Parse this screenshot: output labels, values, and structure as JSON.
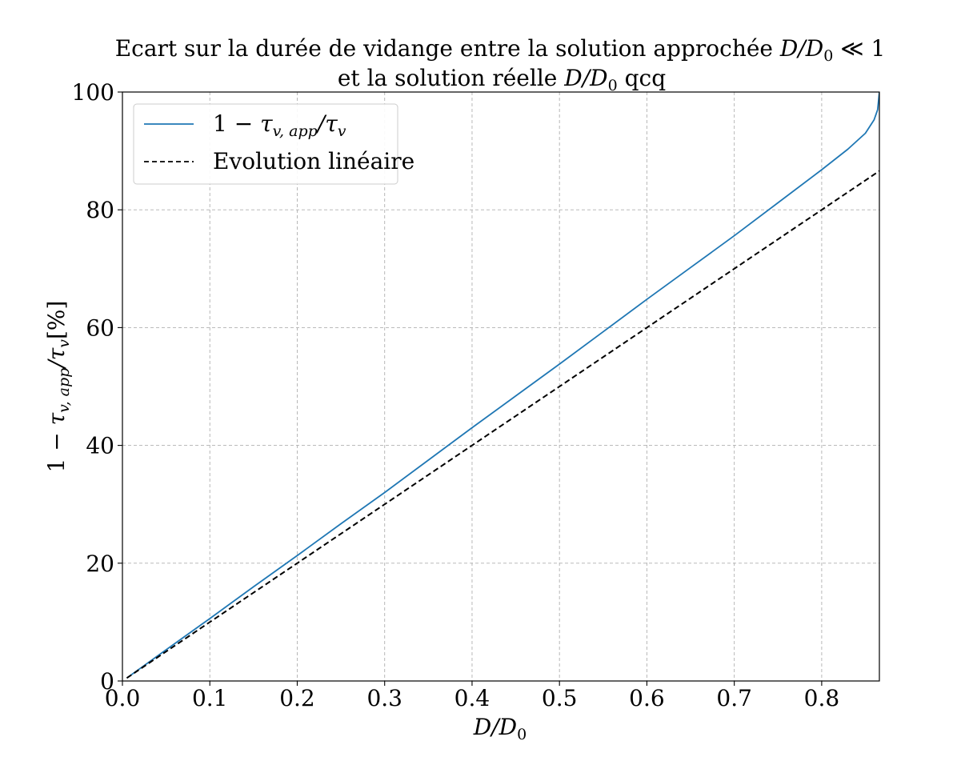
{
  "chart_data": {
    "type": "line",
    "title": {
      "line1_text": "Ecart sur la durée de vidange entre la solution approchée ",
      "line1_math": "D/D",
      "line1_sub": "0",
      "line1_tail": " ≪ 1",
      "line2_text": "et la solution réelle ",
      "line2_math": "D/D",
      "line2_sub": "0",
      "line2_tail": " qcq"
    },
    "xlabel": {
      "main": "D/D",
      "sub": "0"
    },
    "ylabel": {
      "pre": "1 − ",
      "tau": "τ",
      "sub1": "v, app",
      "mid": "/τ",
      "sub2": "v",
      "unit": "[%]"
    },
    "xlim": [
      0.0,
      0.866
    ],
    "ylim": [
      0,
      100
    ],
    "x_ticks": [
      {
        "value": 0.0,
        "label": "0.0"
      },
      {
        "value": 0.1,
        "label": "0.1"
      },
      {
        "value": 0.2,
        "label": "0.2"
      },
      {
        "value": 0.3,
        "label": "0.3"
      },
      {
        "value": 0.4,
        "label": "0.4"
      },
      {
        "value": 0.5,
        "label": "0.5"
      },
      {
        "value": 0.6,
        "label": "0.6"
      },
      {
        "value": 0.7,
        "label": "0.7"
      },
      {
        "value": 0.8,
        "label": "0.8"
      }
    ],
    "y_ticks": [
      {
        "value": 0,
        "label": "0"
      },
      {
        "value": 20,
        "label": "20"
      },
      {
        "value": 40,
        "label": "40"
      },
      {
        "value": 60,
        "label": "60"
      },
      {
        "value": 80,
        "label": "80"
      },
      {
        "value": 100,
        "label": "100"
      }
    ],
    "grid": true,
    "legend_position": "top-left",
    "series": [
      {
        "name": "1 − τv, app/τv",
        "legend": {
          "pre": "1 − ",
          "tau": "τ",
          "sub1": "v, app",
          "mid": "/τ",
          "sub2": "v"
        },
        "style": "solid",
        "color": "#1f77b4",
        "x": [
          0.005,
          0.05,
          0.1,
          0.15,
          0.2,
          0.25,
          0.3,
          0.35,
          0.4,
          0.45,
          0.5,
          0.55,
          0.6,
          0.65,
          0.7,
          0.75,
          0.8,
          0.83,
          0.85,
          0.86,
          0.864,
          0.866
        ],
        "y": [
          0.5,
          5.3,
          10.6,
          16.0,
          21.3,
          26.7,
          32.0,
          37.5,
          43.0,
          48.4,
          53.8,
          59.3,
          64.8,
          70.2,
          75.6,
          81.2,
          86.8,
          90.3,
          93.0,
          95.3,
          97.0,
          100.0
        ]
      },
      {
        "name": "Evolution linéaire",
        "style": "dashed",
        "color": "#000000",
        "x": [
          0.005,
          0.866
        ],
        "y": [
          0.5,
          86.6
        ]
      }
    ]
  }
}
